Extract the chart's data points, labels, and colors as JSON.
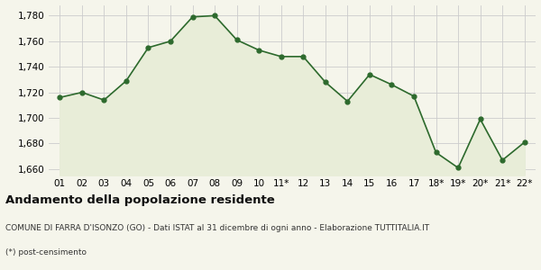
{
  "x_labels": [
    "01",
    "02",
    "03",
    "04",
    "05",
    "06",
    "07",
    "08",
    "09",
    "10",
    "11*",
    "12",
    "13",
    "14",
    "15",
    "16",
    "17",
    "18*",
    "19*",
    "20*",
    "21*",
    "22*"
  ],
  "y_values": [
    1716,
    1720,
    1714,
    1729,
    1755,
    1760,
    1779,
    1780,
    1761,
    1753,
    1748,
    1748,
    1728,
    1713,
    1734,
    1726,
    1717,
    1673,
    1661,
    1699,
    1667,
    1681
  ],
  "line_color": "#2d6a2d",
  "fill_color": "#e8edd8",
  "marker_color": "#2d6a2d",
  "bg_color": "#f5f5eb",
  "grid_color": "#cccccc",
  "ylim_min": 1655,
  "ylim_max": 1788,
  "ytick_values": [
    1660,
    1680,
    1700,
    1720,
    1740,
    1760,
    1780
  ],
  "title": "Andamento della popolazione residente",
  "subtitle": "COMUNE DI FARRA D'ISONZO (GO) - Dati ISTAT al 31 dicembre di ogni anno - Elaborazione TUTTITALIA.IT",
  "footnote": "(*) post-censimento",
  "title_fontsize": 9.5,
  "subtitle_fontsize": 6.5,
  "footnote_fontsize": 6.5,
  "tick_fontsize": 7.5
}
